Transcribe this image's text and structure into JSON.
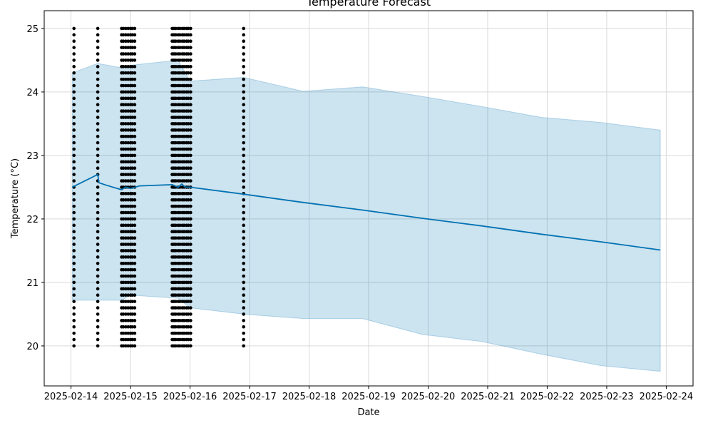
{
  "chart_data": {
    "type": "line",
    "title": "Temperature Forecast",
    "xlabel": "Date",
    "ylabel": "Temperature (°C)",
    "xlim": [
      -0.45,
      10.45
    ],
    "ylim": [
      19.37,
      25.28
    ],
    "grid": true,
    "x_ticks": [
      {
        "value": 0,
        "label": "2025-02-14"
      },
      {
        "value": 1,
        "label": "2025-02-15"
      },
      {
        "value": 2,
        "label": "2025-02-16"
      },
      {
        "value": 3,
        "label": "2025-02-17"
      },
      {
        "value": 4,
        "label": "2025-02-18"
      },
      {
        "value": 5,
        "label": "2025-02-19"
      },
      {
        "value": 6,
        "label": "2025-02-20"
      },
      {
        "value": 7,
        "label": "2025-02-21"
      },
      {
        "value": 8,
        "label": "2025-02-22"
      },
      {
        "value": 9,
        "label": "2025-02-23"
      },
      {
        "value": 10,
        "label": "2025-02-24"
      }
    ],
    "y_ticks": [
      20,
      21,
      22,
      23,
      24,
      25
    ],
    "forecast": {
      "name": "yhat",
      "color": "#0072b2",
      "x": [
        0.02,
        0.45,
        0.47,
        0.6,
        0.85,
        0.92,
        1.0,
        1.15,
        1.7,
        1.8,
        1.86,
        1.92,
        2.0,
        2.9,
        3.9,
        4.9,
        5.9,
        6.9,
        7.9,
        8.9,
        9.9
      ],
      "y": [
        22.5,
        22.7,
        22.57,
        22.53,
        22.46,
        22.5,
        22.48,
        22.52,
        22.54,
        22.5,
        22.55,
        22.5,
        22.5,
        22.39,
        22.26,
        22.14,
        22.01,
        21.89,
        21.76,
        21.64,
        21.51
      ]
    },
    "uncertainty_band": {
      "name": "yhat interval",
      "color": "#0072b2",
      "opacity": 0.2,
      "x": [
        0.02,
        0.45,
        0.85,
        1.0,
        1.8,
        2.0,
        2.9,
        3.9,
        4.9,
        5.9,
        6.9,
        7.9,
        8.9,
        9.9
      ],
      "upper": [
        24.3,
        24.45,
        24.38,
        24.42,
        24.5,
        24.17,
        24.23,
        24.01,
        24.08,
        23.93,
        23.77,
        23.6,
        23.52,
        23.4
      ],
      "lower": [
        20.72,
        20.72,
        20.72,
        20.8,
        20.75,
        20.6,
        20.5,
        20.43,
        20.43,
        20.18,
        20.07,
        19.87,
        19.69,
        19.6
      ]
    },
    "observations": {
      "name": "actual",
      "color": "#000000",
      "y_min": 20.0,
      "y_max": 25.0,
      "y_step": 0.1,
      "x_columns": [
        0.05,
        0.45,
        0.85,
        0.88,
        0.92,
        0.96,
        1.0,
        1.03,
        1.07,
        1.7,
        1.73,
        1.76,
        1.8,
        1.83,
        1.87,
        1.9,
        1.94,
        1.97,
        2.01,
        2.9
      ]
    }
  }
}
